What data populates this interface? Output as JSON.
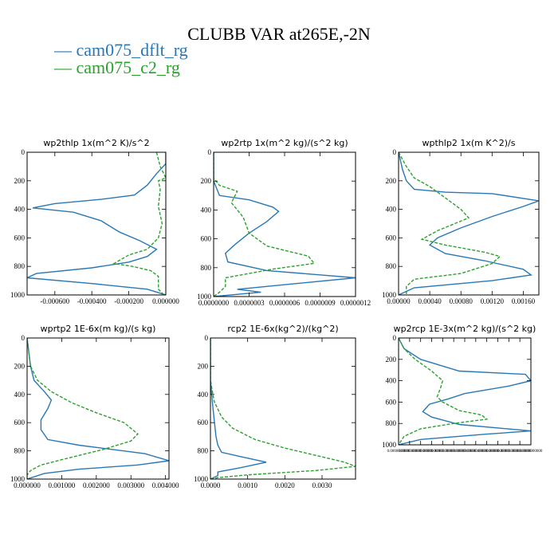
{
  "figure": {
    "title": "CLUBB VAR at265E,-2N",
    "legend": [
      {
        "label": "— cam075_dflt_rg",
        "color": "#2878b5"
      },
      {
        "label": "— cam075_c2_rg",
        "color": "#2ca02c"
      }
    ]
  },
  "chart_data": [
    {
      "type": "line",
      "title": "wp2thlp   1x(m^2 K)/s^2",
      "xlim": [
        -0.00075,
        0.0
      ],
      "ylim": [
        1000,
        0
      ],
      "xticks": [
        -0.0006,
        -0.0004,
        -0.0002,
        0.0
      ],
      "xtick_labels": [
        "-0.000600",
        "-0.000400",
        "-0.000200",
        "0.000000"
      ],
      "yticks": [
        0,
        200,
        400,
        600,
        800,
        1000
      ],
      "ytick_labels": [
        "0",
        "200",
        "400",
        "600",
        "800",
        "1000"
      ],
      "small_ticks": false,
      "series": [
        {
          "name": "cam075_dflt_rg",
          "color": "#2878b5",
          "dashed": false,
          "x": [
            0,
            0,
            -5e-05,
            -0.0001,
            -0.00017,
            -0.00035,
            -0.0006,
            -0.00072,
            -0.0005,
            -0.00035,
            -0.00025,
            -0.00014,
            -5e-05,
            -0.0001,
            -0.0002,
            -0.0004,
            -0.0007,
            -0.00075,
            -0.0004,
            -0.0001,
            0
          ],
          "y": [
            0,
            80,
            150,
            230,
            300,
            330,
            360,
            390,
            420,
            480,
            560,
            620,
            680,
            730,
            770,
            810,
            850,
            880,
            920,
            960,
            1000
          ]
        },
        {
          "name": "cam075_c2_rg",
          "color": "#2ca02c",
          "dashed": true,
          "x": [
            -5e-05,
            -3e-05,
            0,
            -4e-05,
            -3e-05,
            -4e-05,
            -2e-05,
            -4e-05,
            -0.0001,
            -0.0002,
            -0.00028,
            -0.00018,
            -8e-05,
            -4e-05,
            -4e-05,
            -4e-05,
            -1e-05
          ],
          "y": [
            0,
            100,
            180,
            200,
            260,
            380,
            500,
            600,
            680,
            720,
            780,
            800,
            830,
            870,
            920,
            960,
            1000
          ]
        }
      ]
    },
    {
      "type": "line",
      "title": "wp2rtp   1x(m^2 kg)/(s^2 kg)",
      "xlim": [
        0.0,
        1.2e-06
      ],
      "ylim": [
        1000,
        0
      ],
      "xticks": [
        0.0,
        3e-07,
        6e-07,
        9e-07,
        1.2e-06
      ],
      "xtick_labels": [
        "0.0000000",
        "0.0000003",
        "0.0000006",
        "0.0000009",
        "0.0000012"
      ],
      "yticks": [
        0,
        200,
        400,
        600,
        800,
        1000
      ],
      "ytick_labels": [
        "0",
        "200",
        "400",
        "600",
        "800",
        "1000"
      ],
      "small_ticks": false,
      "series": [
        {
          "name": "cam075_dflt_rg",
          "color": "#2878b5",
          "dashed": false,
          "x": [
            0.0,
            0.0,
            5e-08,
            3e-07,
            5e-07,
            5.5e-07,
            4.5e-07,
            3e-07,
            1.8e-07,
            1e-07,
            1.2e-07,
            4.5e-07,
            1.2e-06,
            7e-07,
            2e-07,
            4e-07,
            0.0
          ],
          "y": [
            0,
            200,
            300,
            330,
            380,
            410,
            480,
            560,
            640,
            700,
            760,
            820,
            870,
            910,
            950,
            970,
            1000
          ]
        },
        {
          "name": "cam075_c2_rg",
          "color": "#2ca02c",
          "dashed": true,
          "x": [
            0.0,
            0.0,
            5e-08,
            2e-07,
            1.5e-07,
            2.5e-07,
            3e-07,
            4.5e-07,
            8e-07,
            8.5e-07,
            5e-07,
            1e-07,
            1e-07,
            5e-08,
            0.0
          ],
          "y": [
            0,
            180,
            230,
            270,
            350,
            450,
            560,
            650,
            720,
            770,
            810,
            870,
            930,
            970,
            1000
          ]
        }
      ]
    },
    {
      "type": "line",
      "title": "wpthlp2   1x(m K^2)/s",
      "xlim": [
        0.0,
        0.0018
      ],
      "ylim": [
        1000,
        0
      ],
      "xticks": [
        0.0,
        0.0004,
        0.0008,
        0.0012,
        0.0016
      ],
      "xtick_labels": [
        "0.00000",
        "0.00040",
        "0.00080",
        "0.00120",
        "0.00160"
      ],
      "yticks": [
        0,
        200,
        400,
        600,
        800,
        1000
      ],
      "ytick_labels": [
        "0",
        "200",
        "400",
        "600",
        "800",
        "1000"
      ],
      "small_ticks": false,
      "series": [
        {
          "name": "cam075_dflt_rg",
          "color": "#2878b5",
          "dashed": false,
          "x": [
            0.0,
            5e-05,
            0.0001,
            0.0002,
            0.0006,
            0.0012,
            0.0018,
            0.0016,
            0.0012,
            0.0008,
            0.0005,
            0.0004,
            0.0006,
            0.0011,
            0.0016,
            0.0017,
            0.0012,
            0.0002,
            0.0
          ],
          "y": [
            0,
            120,
            200,
            260,
            280,
            290,
            340,
            380,
            450,
            530,
            600,
            650,
            710,
            760,
            820,
            860,
            900,
            950,
            1000
          ]
        },
        {
          "name": "cam075_c2_rg",
          "color": "#2ca02c",
          "dashed": true,
          "x": [
            0.0,
            0.0001,
            0.0002,
            0.0004,
            0.0006,
            0.0008,
            0.0009,
            0.0005,
            0.0003,
            0.0006,
            0.0011,
            0.0013,
            0.0012,
            0.0008,
            0.0002,
            0.0001,
            0.0001
          ],
          "y": [
            0,
            100,
            180,
            240,
            320,
            400,
            460,
            550,
            610,
            650,
            700,
            730,
            780,
            850,
            890,
            940,
            1000
          ]
        }
      ]
    },
    {
      "type": "line",
      "title": "wprtp2   1E-6x(m kg)/(s kg)",
      "xlim": [
        0.0,
        0.0041
      ],
      "ylim": [
        1000,
        0
      ],
      "xticks": [
        0.0,
        0.001,
        0.002,
        0.003,
        0.004
      ],
      "xtick_labels": [
        "0.000000",
        "0.001000",
        "0.002000",
        "0.003000",
        "0.004000"
      ],
      "yticks": [
        0,
        200,
        400,
        600,
        800,
        1000
      ],
      "ytick_labels": [
        "0",
        "200",
        "400",
        "600",
        "800",
        "1000"
      ],
      "small_ticks": false,
      "series": [
        {
          "name": "cam075_dflt_rg",
          "color": "#2878b5",
          "dashed": false,
          "x": [
            0.0,
            0.0001,
            0.0002,
            0.0005,
            0.0007,
            0.0006,
            0.0004,
            0.0004,
            0.0006,
            0.0015,
            0.0034,
            0.0041,
            0.0032,
            0.0015,
            0.0005,
            0.0
          ],
          "y": [
            0,
            200,
            300,
            380,
            440,
            500,
            580,
            650,
            720,
            760,
            820,
            870,
            900,
            930,
            960,
            1000
          ]
        },
        {
          "name": "cam075_c2_rg",
          "color": "#2ca02c",
          "dashed": true,
          "x": [
            0.0,
            0.0001,
            0.0003,
            0.0007,
            0.0013,
            0.002,
            0.0028,
            0.0032,
            0.003,
            0.0022,
            0.0012,
            0.0004,
            0.0001,
            0.0,
            0.0
          ],
          "y": [
            0,
            200,
            300,
            380,
            460,
            530,
            600,
            680,
            730,
            790,
            850,
            900,
            940,
            970,
            1000
          ]
        }
      ]
    },
    {
      "type": "line",
      "title": "rcp2   1E-6x(kg^2)/(kg^2)",
      "xlim": [
        0.0,
        0.0039
      ],
      "ylim": [
        1000,
        0
      ],
      "xticks": [
        0.0,
        0.001,
        0.002,
        0.003
      ],
      "xtick_labels": [
        "0.0000",
        "0.0010",
        "0.0020",
        "0.0030"
      ],
      "yticks": [
        0,
        200,
        400,
        600,
        800,
        1000
      ],
      "ytick_labels": [
        "0",
        "200",
        "400",
        "600",
        "800",
        "1000"
      ],
      "small_ticks": false,
      "series": [
        {
          "name": "cam075_dflt_rg",
          "color": "#2878b5",
          "dashed": false,
          "x": [
            0.0,
            0.0,
            5e-05,
            0.0001,
            0.00015,
            0.0002,
            0.0003,
            0.0008,
            0.0015,
            0.0008,
            0.0002,
            0.0002,
            0.0
          ],
          "y": [
            0,
            300,
            450,
            580,
            700,
            760,
            810,
            840,
            880,
            920,
            950,
            975,
            1000
          ]
        },
        {
          "name": "cam075_c2_rg",
          "color": "#2ca02c",
          "dashed": true,
          "x": [
            0.0,
            0.0,
            0.0001,
            0.0003,
            0.0006,
            0.0012,
            0.002,
            0.0028,
            0.0036,
            0.0039,
            0.0028,
            0.001,
            0.0002,
            0.0
          ],
          "y": [
            0,
            300,
            450,
            560,
            640,
            720,
            780,
            830,
            880,
            910,
            940,
            970,
            990,
            1000
          ]
        }
      ]
    },
    {
      "type": "line",
      "title": "wp2rcp   1E-3x(m^2 kg)/(s^2 kg)",
      "xlim": [
        0.0,
        1.2
      ],
      "ylim": [
        1000,
        0
      ],
      "xticks": [
        0.0,
        0.1,
        0.2,
        0.3,
        0.4,
        0.5,
        0.6,
        0.7,
        0.8,
        0.9,
        1.0,
        1.1,
        1.2
      ],
      "xtick_labels": [
        "0.0000000000",
        "0.0000000000",
        "0.0000000000",
        "0.0000000000",
        "0.0000000000",
        "0.0000000000",
        "0.0000000000",
        "0.0000000000",
        "0.0000000000",
        "0.0000000000",
        "0.0000000000",
        "0.0000000000",
        "0.0000000000"
      ],
      "yticks": [
        0,
        200,
        400,
        600,
        800,
        1000
      ],
      "ytick_labels": [
        "0",
        "200",
        "400",
        "600",
        "800",
        "1000"
      ],
      "small_ticks": true,
      "series": [
        {
          "name": "cam075_dflt_rg",
          "color": "#2878b5",
          "dashed": false,
          "x": [
            0.0,
            0.05,
            0.2,
            0.55,
            1.15,
            1.2,
            1.0,
            0.6,
            0.45,
            0.28,
            0.22,
            0.3,
            0.55,
            1.2,
            0.8,
            0.2,
            0.0
          ],
          "y": [
            0,
            100,
            200,
            310,
            340,
            400,
            450,
            520,
            570,
            620,
            690,
            740,
            810,
            870,
            900,
            950,
            1000
          ]
        },
        {
          "name": "cam075_c2_rg",
          "color": "#2ca02c",
          "dashed": true,
          "x": [
            0.0,
            0.05,
            0.15,
            0.3,
            0.4,
            0.38,
            0.35,
            0.4,
            0.55,
            0.75,
            0.8,
            0.5,
            0.2,
            0.05,
            0.0
          ],
          "y": [
            0,
            100,
            200,
            310,
            400,
            470,
            550,
            600,
            680,
            720,
            760,
            800,
            850,
            920,
            1000
          ]
        }
      ]
    }
  ]
}
